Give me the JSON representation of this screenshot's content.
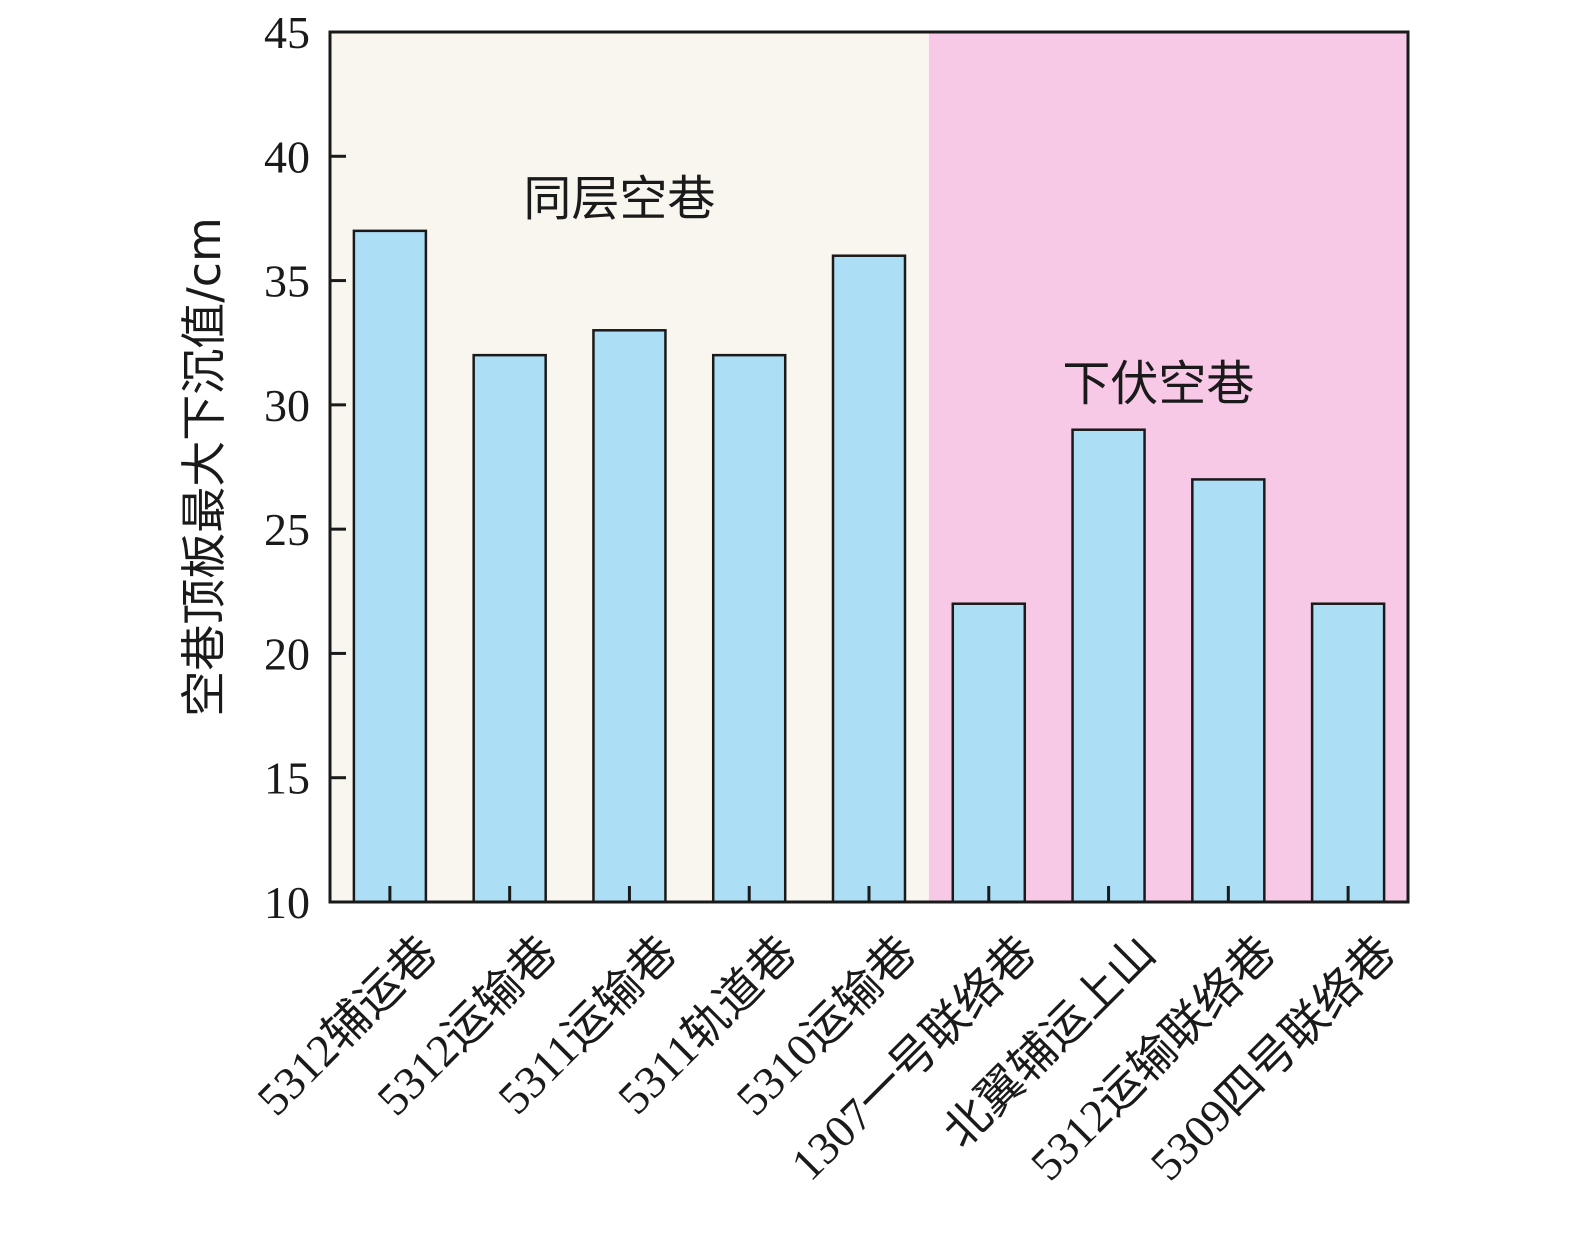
{
  "chart_data": {
    "type": "bar",
    "ylabel": "空巷顶板最大下沉值/cm",
    "xlabel": "",
    "ylim": [
      10,
      45
    ],
    "yticks": [
      10,
      15,
      20,
      25,
      30,
      35,
      40,
      45
    ],
    "categories": [
      "5312辅运巷",
      "5312运输巷",
      "5311运输巷",
      "5311轨道巷",
      "5310运输巷",
      "1307一号联络巷",
      "北翼辅运上山",
      "5312运输联络巷",
      "5309四号联络巷"
    ],
    "values": [
      37,
      32,
      33,
      32,
      36,
      22,
      29,
      27,
      22
    ],
    "regions": [
      {
        "label": "同层空巷",
        "start_index": 0,
        "end_index": 4,
        "color": "#f9f6ef"
      },
      {
        "label": "下伏空巷",
        "start_index": 5,
        "end_index": 8,
        "color": "#f7c9e6"
      }
    ],
    "bar_color": "#acdef6",
    "edge_color": "#1a1a1a",
    "grid": false
  }
}
